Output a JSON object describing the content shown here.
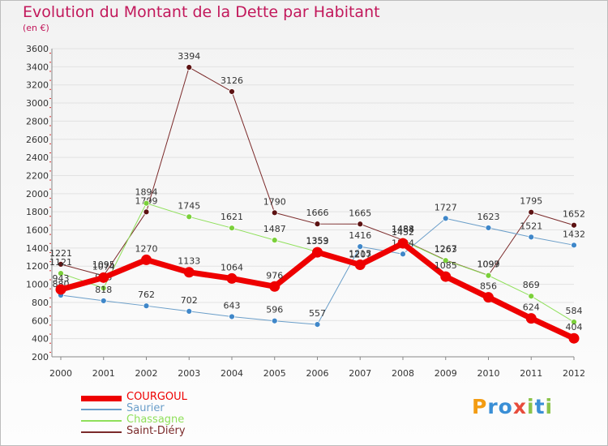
{
  "chart_data": {
    "type": "line",
    "title": "Evolution du Montant de la Dette par Habitant",
    "subtitle": "(en €)",
    "xlabel": "",
    "ylabel": "",
    "categories": [
      "2000",
      "2001",
      "2002",
      "2003",
      "2004",
      "2005",
      "2006",
      "2007",
      "2008",
      "2009",
      "2010",
      "2011",
      "2012"
    ],
    "ylim": [
      200,
      3600
    ],
    "yticks": [
      200,
      400,
      600,
      800,
      1000,
      1200,
      1400,
      1600,
      1800,
      2000,
      2200,
      2400,
      2600,
      2800,
      3000,
      3200,
      3400,
      3600
    ],
    "grid": true,
    "legend_position": "bottom-left",
    "series": [
      {
        "name": "Saint-Diéry",
        "color": "#7b2a2a",
        "marker": "#5c1212",
        "width": 1,
        "values": [
          1221,
          1095,
          1799,
          3394,
          3126,
          1790,
          1666,
          1665,
          1488,
          1267,
          1099,
          1795,
          1652
        ]
      },
      {
        "name": "Chassagne",
        "color": "#8fe05a",
        "marker": "#7bd03a",
        "width": 1,
        "values": [
          1121,
          958,
          1894,
          1745,
          1621,
          1487,
          1359,
          1207,
          1484,
          1263,
          1097,
          869,
          584
        ]
      },
      {
        "name": "Saurier",
        "color": "#6a9ec9",
        "marker": "#3f87c9",
        "width": 1,
        "values": [
          880,
          818,
          762,
          702,
          643,
          596,
          557,
          1416,
          1334,
          1727,
          1623,
          1521,
          1432
        ]
      },
      {
        "name": "COURGOUL",
        "color": "#ee0000",
        "marker": "#ee0000",
        "width": 7,
        "values": [
          943,
          1074,
          1270,
          1133,
          1064,
          976,
          1353,
          1215,
          1452,
          1085,
          856,
          624,
          404
        ]
      }
    ]
  },
  "legend": {
    "items": [
      {
        "label": "COURGOUL",
        "color": "#ee0000"
      },
      {
        "label": "Saurier",
        "color": "#6a9ec9"
      },
      {
        "label": "Chassagne",
        "color": "#8fe05a"
      },
      {
        "label": "Saint-Diéry",
        "color": "#7b2a2a"
      }
    ]
  },
  "logo": {
    "text": "Proxiti",
    "colors": [
      "#f39c12",
      "#3a8fd6",
      "#3a8fd6",
      "#e74c3c",
      "#8bc34a",
      "#3a8fd6",
      "#8bc34a"
    ]
  }
}
